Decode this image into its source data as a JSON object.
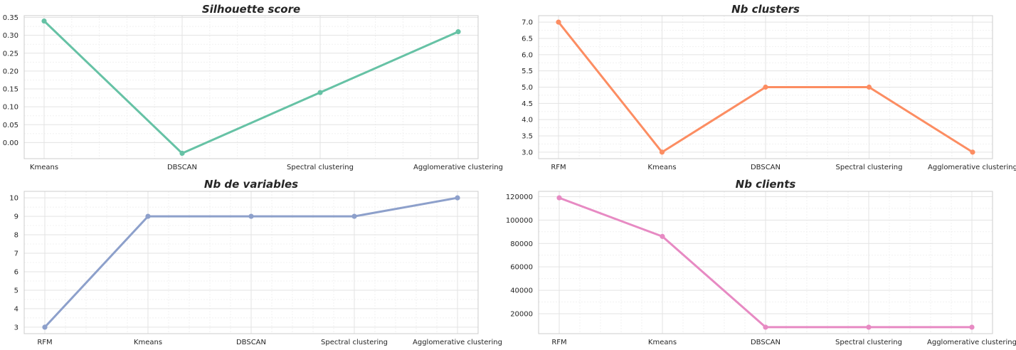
{
  "chart_data": [
    {
      "type": "line",
      "title": "Silhouette score",
      "categories": [
        "Kmeans",
        "DBSCAN",
        "Spectral clustering",
        "Agglomerative clustering"
      ],
      "values": [
        0.34,
        -0.03,
        0.14,
        0.31
      ],
      "ylim": [
        -0.045,
        0.355
      ],
      "yticks": [
        0.0,
        0.05,
        0.1,
        0.15,
        0.2,
        0.25,
        0.3,
        0.35
      ],
      "ytick_labels": [
        "0.00",
        "0.05",
        "0.10",
        "0.15",
        "0.20",
        "0.25",
        "0.30",
        "0.35"
      ],
      "color": "#66c2a5",
      "grid": true
    },
    {
      "type": "line",
      "title": "Nb clusters",
      "categories": [
        "RFM",
        "Kmeans",
        "DBSCAN",
        "Spectral clustering",
        "Agglomerative clustering"
      ],
      "values": [
        7,
        3,
        5,
        5,
        3
      ],
      "ylim": [
        2.8,
        7.2
      ],
      "yticks": [
        3.0,
        3.5,
        4.0,
        4.5,
        5.0,
        5.5,
        6.0,
        6.5,
        7.0
      ],
      "ytick_labels": [
        "3.0",
        "3.5",
        "4.0",
        "4.5",
        "5.0",
        "5.5",
        "6.0",
        "6.5",
        "7.0"
      ],
      "color": "#fc8d62",
      "grid": true
    },
    {
      "type": "line",
      "title": "Nb de variables",
      "categories": [
        "RFM",
        "Kmeans",
        "DBSCAN",
        "Spectral clustering",
        "Agglomerative clustering"
      ],
      "values": [
        3,
        9,
        9,
        9,
        10
      ],
      "ylim": [
        2.65,
        10.35
      ],
      "yticks": [
        3,
        4,
        5,
        6,
        7,
        8,
        9,
        10
      ],
      "ytick_labels": [
        "3",
        "4",
        "5",
        "6",
        "7",
        "8",
        "9",
        "10"
      ],
      "color": "#8da0cb",
      "grid": true
    },
    {
      "type": "line",
      "title": "Nb clients",
      "categories": [
        "RFM",
        "Kmeans",
        "DBSCAN",
        "Spectral clustering",
        "Agglomerative clustering"
      ],
      "values": [
        119000,
        86000,
        8500,
        8500,
        8500
      ],
      "ylim": [
        3000,
        124500
      ],
      "yticks": [
        20000,
        40000,
        60000,
        80000,
        100000,
        120000
      ],
      "ytick_labels": [
        "20000",
        "40000",
        "60000",
        "80000",
        "100000",
        "120000"
      ],
      "color": "#e78ac3",
      "grid": true
    }
  ]
}
